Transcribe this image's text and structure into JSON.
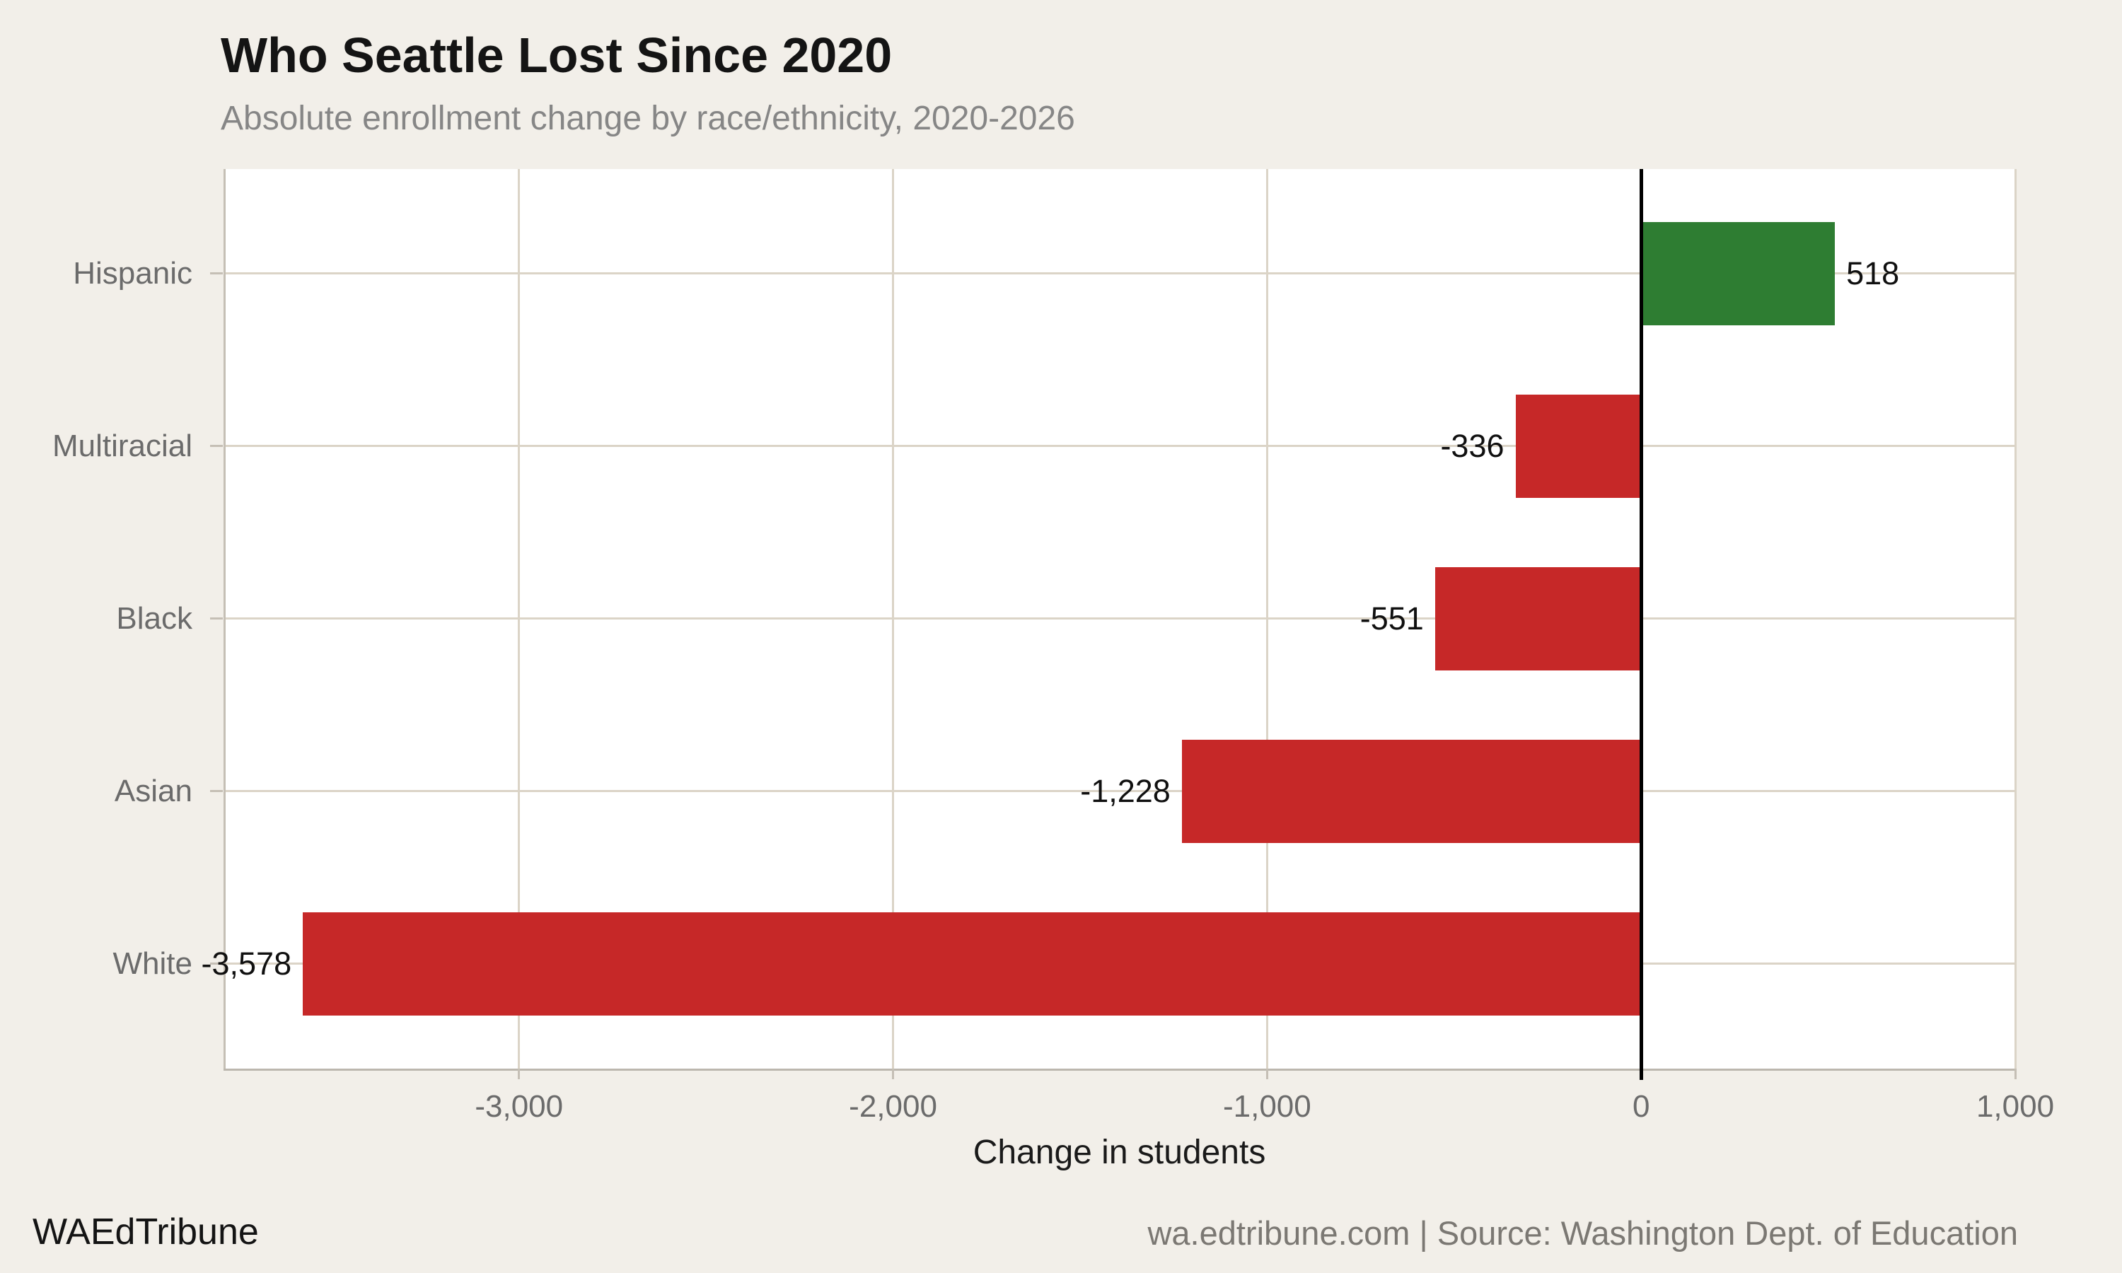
{
  "header": {
    "title": "Who Seattle Lost Since 2020",
    "subtitle": "Absolute enrollment change by race/ethnicity, 2020-2026"
  },
  "footer": {
    "brand": "WAEdTribune",
    "source": "wa.edtribune.com | Source: Washington Dept. of Education"
  },
  "chart_data": {
    "type": "bar",
    "orientation": "horizontal",
    "title": "Who Seattle Lost Since 2020",
    "subtitle": "Absolute enrollment change by race/ethnicity, 2020-2026",
    "categories": [
      "Hispanic",
      "Multiracial",
      "Black",
      "Asian",
      "White"
    ],
    "values": [
      518,
      -336,
      -551,
      -1228,
      -3578
    ],
    "value_labels": [
      "518",
      "-336",
      "-551",
      "-1,228",
      "-3,578"
    ],
    "xlabel": "Change in students",
    "ylabel": "",
    "xlim": [
      -3790,
      1000
    ],
    "x_ticks": [
      -3000,
      -2000,
      -1000,
      0,
      1000
    ],
    "x_tick_labels": [
      "-3,000",
      "-2,000",
      "-1,000",
      "0",
      "1,000"
    ],
    "grid": true,
    "legend": "none",
    "colors": {
      "positive": "#2e7d32",
      "negative": "#c62828",
      "background": "#f2efe9",
      "panel": "#ffffff",
      "gridline": "#dbd4c7",
      "axis_line": "#c5bfb5",
      "zero_line": "#000000",
      "category_text": "#6b6b6b",
      "value_text": "#101010",
      "subtitle_text": "#868686",
      "footer_text": "#7b7873"
    }
  }
}
